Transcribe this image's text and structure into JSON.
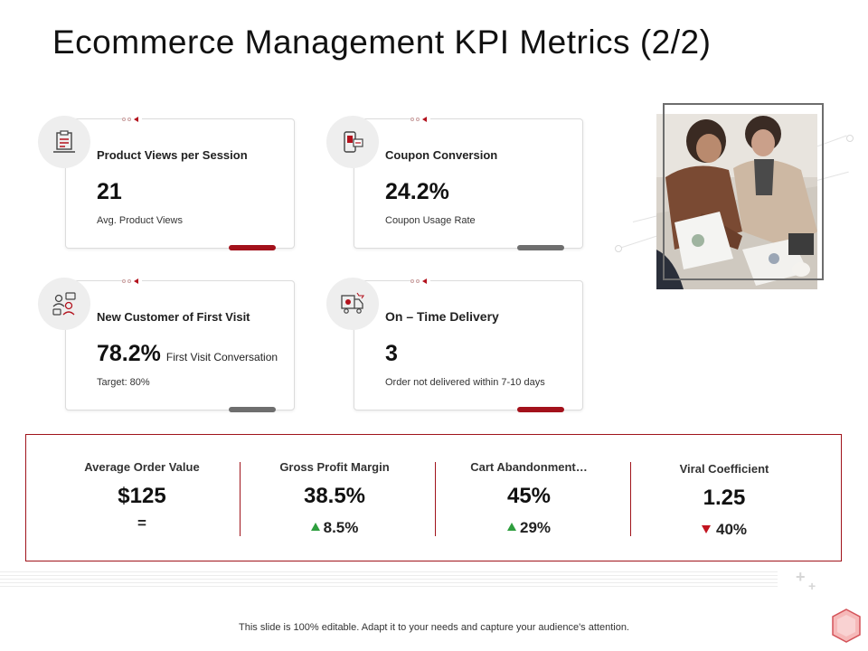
{
  "title": "Ecommerce Management KPI Metrics (2/2)",
  "cards": [
    {
      "label": "Product Views per Session",
      "value": "21",
      "value_note": "",
      "sub": "Avg.  Product Views",
      "icon": "product-checklist-icon",
      "bar_color": "#a3111b"
    },
    {
      "label": "Coupon Conversion",
      "value": "24.2%",
      "value_note": "",
      "sub": "Coupon Usage Rate",
      "icon": "coupon-icon",
      "bar_color": "#6e6e6e"
    },
    {
      "label": "New Customer of First Visit",
      "value": "78.2%",
      "value_note": "First Visit Conversation",
      "sub": "Target: 80%",
      "icon": "customers-chat-icon",
      "bar_color": "#6e6e6e"
    },
    {
      "label": "On – Time Delivery",
      "value": "3",
      "value_note": "",
      "sub": "Order not delivered within 7-10 days",
      "icon": "delivery-truck-icon",
      "bar_color": "#a3111b"
    }
  ],
  "kpis": [
    {
      "label": "Average  Order Value",
      "value": "$125",
      "change": "=",
      "trend": "flat"
    },
    {
      "label": "Gross Profit Margin",
      "value": "38.5%",
      "change": "8.5%",
      "trend": "up"
    },
    {
      "label": "Cart Abandonment…",
      "value": "45%",
      "change": "29%",
      "trend": "up"
    },
    {
      "label": "Viral Coefficient",
      "value": "1.25",
      "change": "40%",
      "trend": "down"
    }
  ],
  "footer": "This slide is 100% editable. Adapt it to your needs and capture your audience's attention.",
  "colors": {
    "accent": "#a3111b",
    "up": "#2e9e3e",
    "down": "#c2141f"
  }
}
